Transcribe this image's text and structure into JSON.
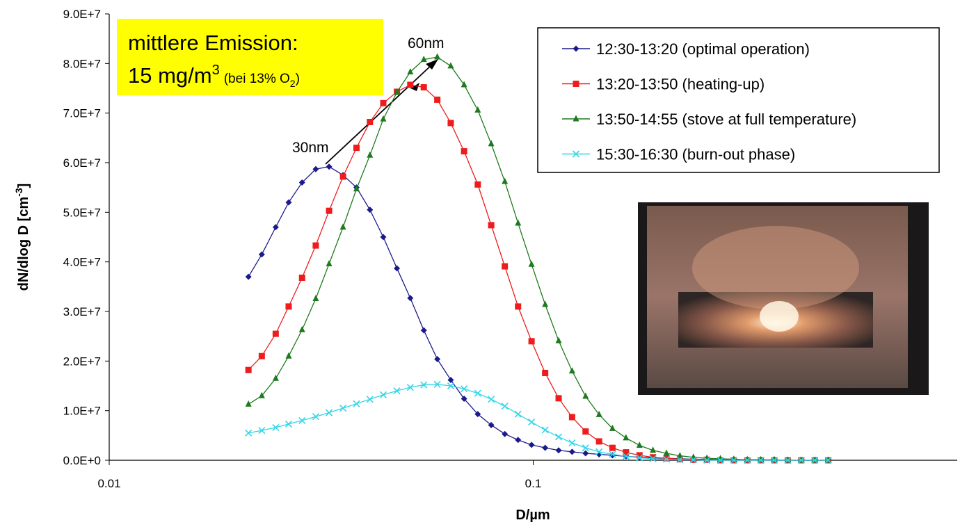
{
  "chart_data": {
    "type": "line",
    "box_line1": "mittlere Emission:",
    "box_main": "15 mg/m",
    "box_sup": "3",
    "box_note": "(bei 13% O",
    "box_sub": "2",
    "box_close": ")",
    "annotation_30": "30nm",
    "annotation_60": "60nm",
    "ylabel": "dN/dlog D [cm",
    "ylabel_sup": "-3",
    "ylabel_end": "]",
    "xlabel": "D/µm",
    "xscale": "log",
    "xlim": [
      0.01,
      1
    ],
    "xticks": [
      0.01,
      0.1
    ],
    "ylim": [
      0,
      90000000
    ],
    "yticks": [
      {
        "value": 0,
        "label": "0.0E+0"
      },
      {
        "value": 10000000,
        "label": "1.0E+7"
      },
      {
        "value": 20000000,
        "label": "2.0E+7"
      },
      {
        "value": 30000000,
        "label": "3.0E+7"
      },
      {
        "value": 40000000,
        "label": "4.0E+7"
      },
      {
        "value": 50000000,
        "label": "5.0E+7"
      },
      {
        "value": 60000000,
        "label": "6.0E+7"
      },
      {
        "value": 70000000,
        "label": "7.0E+7"
      },
      {
        "value": 80000000,
        "label": "8.0E+7"
      },
      {
        "value": 90000000,
        "label": "9.0E+7"
      }
    ],
    "x": [
      0.0213,
      0.0229,
      0.0247,
      0.0265,
      0.0285,
      0.0307,
      0.033,
      0.0356,
      0.0383,
      0.0412,
      0.0443,
      0.0477,
      0.0513,
      0.0552,
      0.0594,
      0.0639,
      0.0687,
      0.074,
      0.0796,
      0.0857,
      0.0921,
      0.0991,
      0.1067,
      0.1148,
      0.1235,
      0.1329,
      0.143,
      0.1538,
      0.1655,
      0.1781,
      0.1916,
      0.2062,
      0.2218,
      0.2387,
      0.2568,
      0.2763,
      0.2973,
      0.3199,
      0.3442,
      0.3703,
      0.3985,
      0.4287,
      0.4613,
      0.4964
    ],
    "series": [
      {
        "name": "12:30-13:20 (optimal operation)",
        "color": "#1a1a8c",
        "marker": "diamond",
        "values": [
          37000000.0,
          41500000.0,
          47000000.0,
          52000000.0,
          56000000.0,
          58700000.0,
          59200000.0,
          57500000.0,
          55000000.0,
          50500000.0,
          45000000.0,
          38700000.0,
          32700000.0,
          26200000.0,
          20400000.0,
          16200000.0,
          12400000.0,
          9300000.0,
          7100000.0,
          5300000.0,
          4100000.0,
          3100000.0,
          2500000.0,
          2000000.0,
          1700000.0,
          1400000.0,
          1200000.0,
          1000000.0,
          800000.0,
          600000.0,
          500000.0,
          400000.0,
          300000.0,
          200000.0,
          200000.0,
          100000.0,
          100000.0,
          100000.0,
          100000.0,
          0,
          0,
          0,
          0,
          0
        ]
      },
      {
        "name": "13:20-13:50 (heating-up)",
        "color": "#ee1c1c",
        "marker": "square",
        "values": [
          18200000.0,
          21000000.0,
          25500000.0,
          31000000.0,
          36800000.0,
          43300000.0,
          50300000.0,
          57200000.0,
          63000000.0,
          68200000.0,
          72000000.0,
          74300000.0,
          75700000.0,
          75200000.0,
          72700000.0,
          68000000.0,
          62300000.0,
          55600000.0,
          47400000.0,
          39100000.0,
          31000000.0,
          24000000.0,
          17600000.0,
          12500000.0,
          8700000.0,
          5800000.0,
          3800000.0,
          2500000.0,
          1600000.0,
          1000000.0,
          600000.0,
          400000.0,
          200000.0,
          100000.0,
          100000.0,
          0,
          0,
          0,
          0,
          0,
          0,
          0,
          0,
          0
        ]
      },
      {
        "name": "13:50-14:55 (stove at full temperature)",
        "color": "#1e7a1e",
        "marker": "triangle",
        "values": [
          11300000.0,
          13000000.0,
          16500000.0,
          21000000.0,
          26300000.0,
          32600000.0,
          39600000.0,
          47000000.0,
          54700000.0,
          61500000.0,
          68800000.0,
          74200000.0,
          78300000.0,
          80800000.0,
          81300000.0,
          79500000.0,
          75700000.0,
          70600000.0,
          63800000.0,
          56200000.0,
          47800000.0,
          39500000.0,
          31400000.0,
          24100000.0,
          18000000.0,
          12900000.0,
          9200000.0,
          6400000.0,
          4500000.0,
          3000000.0,
          2000000.0,
          1400000.0,
          900000.0,
          600000.0,
          400000.0,
          300000.0,
          200000.0,
          100000.0,
          100000.0,
          100000.0,
          0,
          0,
          0,
          0
        ]
      },
      {
        "name": "15:30-16:30 (burn-out phase)",
        "color": "#33d6e8",
        "marker": "x",
        "values": [
          5500000.0,
          6000000.0,
          6600000.0,
          7300000.0,
          8000000.0,
          8800000.0,
          9600000.0,
          10500000.0,
          11400000.0,
          12300000.0,
          13200000.0,
          14000000.0,
          14700000.0,
          15200000.0,
          15300000.0,
          15000000.0,
          14400000.0,
          13500000.0,
          12300000.0,
          10900000.0,
          9300000.0,
          7700000.0,
          6100000.0,
          4700000.0,
          3500000.0,
          2500000.0,
          1700000.0,
          1200000.0,
          800000.0,
          500000.0,
          300000.0,
          200000.0,
          100000.0,
          100000.0,
          0,
          0,
          0,
          0,
          0,
          0,
          0,
          0,
          0,
          0
        ]
      }
    ]
  }
}
